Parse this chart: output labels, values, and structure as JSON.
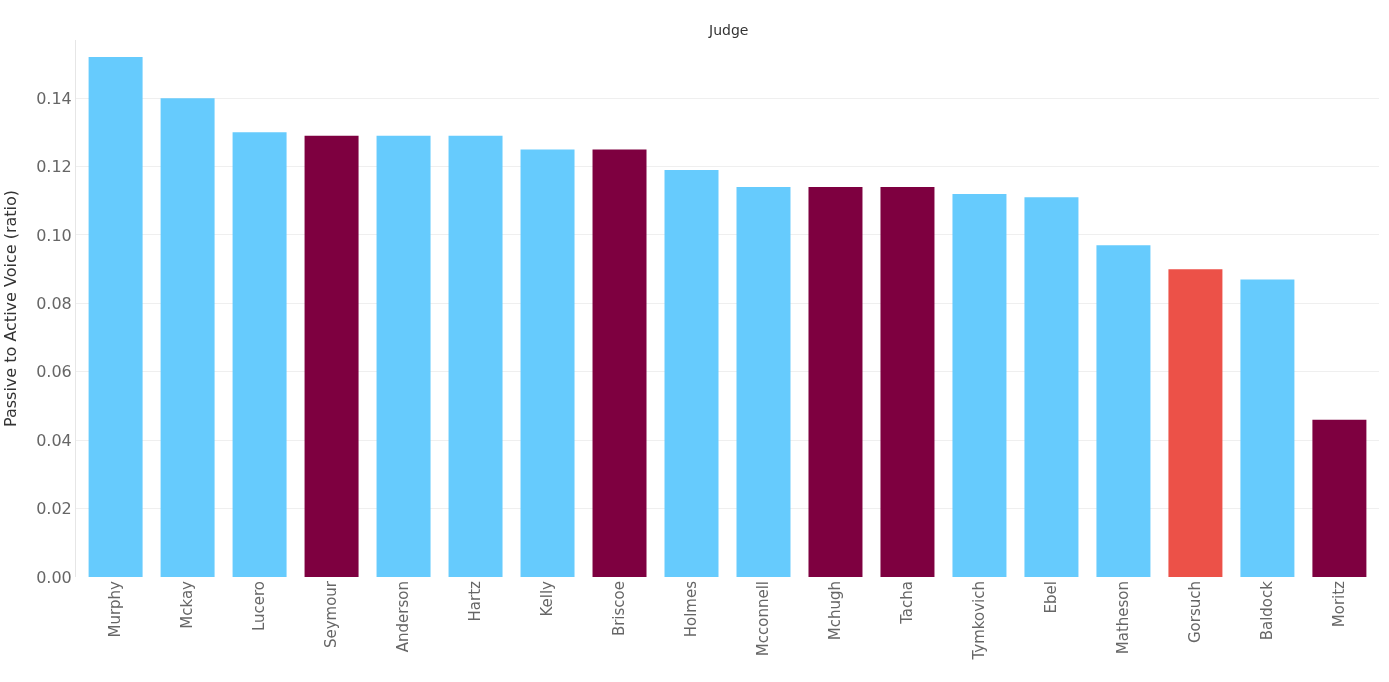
{
  "chart_data": {
    "type": "bar",
    "xlabel": "Judge",
    "ylabel": "Passive to Active Voice (ratio)",
    "categories": [
      "Murphy",
      "Mckay",
      "Lucero",
      "Seymour",
      "Anderson",
      "Hartz",
      "Kelly",
      "Briscoe",
      "Holmes",
      "Mcconnell",
      "Mchugh",
      "Tacha",
      "Tymkovich",
      "Ebel",
      "Matheson",
      "Gorsuch",
      "Baldock",
      "Moritz"
    ],
    "values": [
      0.152,
      0.14,
      0.13,
      0.129,
      0.129,
      0.129,
      0.125,
      0.125,
      0.119,
      0.114,
      0.114,
      0.114,
      0.112,
      0.111,
      0.097,
      0.09,
      0.087,
      0.046
    ],
    "colors": [
      "#66cbfd",
      "#66cbfd",
      "#66cbfd",
      "#7e0040",
      "#66cbfd",
      "#66cbfd",
      "#66cbfd",
      "#7e0040",
      "#66cbfd",
      "#66cbfd",
      "#7e0040",
      "#7e0040",
      "#66cbfd",
      "#66cbfd",
      "#66cbfd",
      "#ec5148",
      "#66cbfd",
      "#7e0040"
    ],
    "ylim": [
      0,
      0.157
    ],
    "yticks": [
      {
        "value": 0,
        "label": "0.00"
      },
      {
        "value": 0.02,
        "label": "0.02"
      },
      {
        "value": 0.04,
        "label": "0.04"
      },
      {
        "value": 0.06,
        "label": "0.06"
      },
      {
        "value": 0.08,
        "label": "0.08"
      },
      {
        "value": 0.1,
        "label": "0.10"
      },
      {
        "value": 0.12,
        "label": "0.12"
      },
      {
        "value": 0.14,
        "label": "0.14"
      }
    ],
    "grid": "y"
  }
}
